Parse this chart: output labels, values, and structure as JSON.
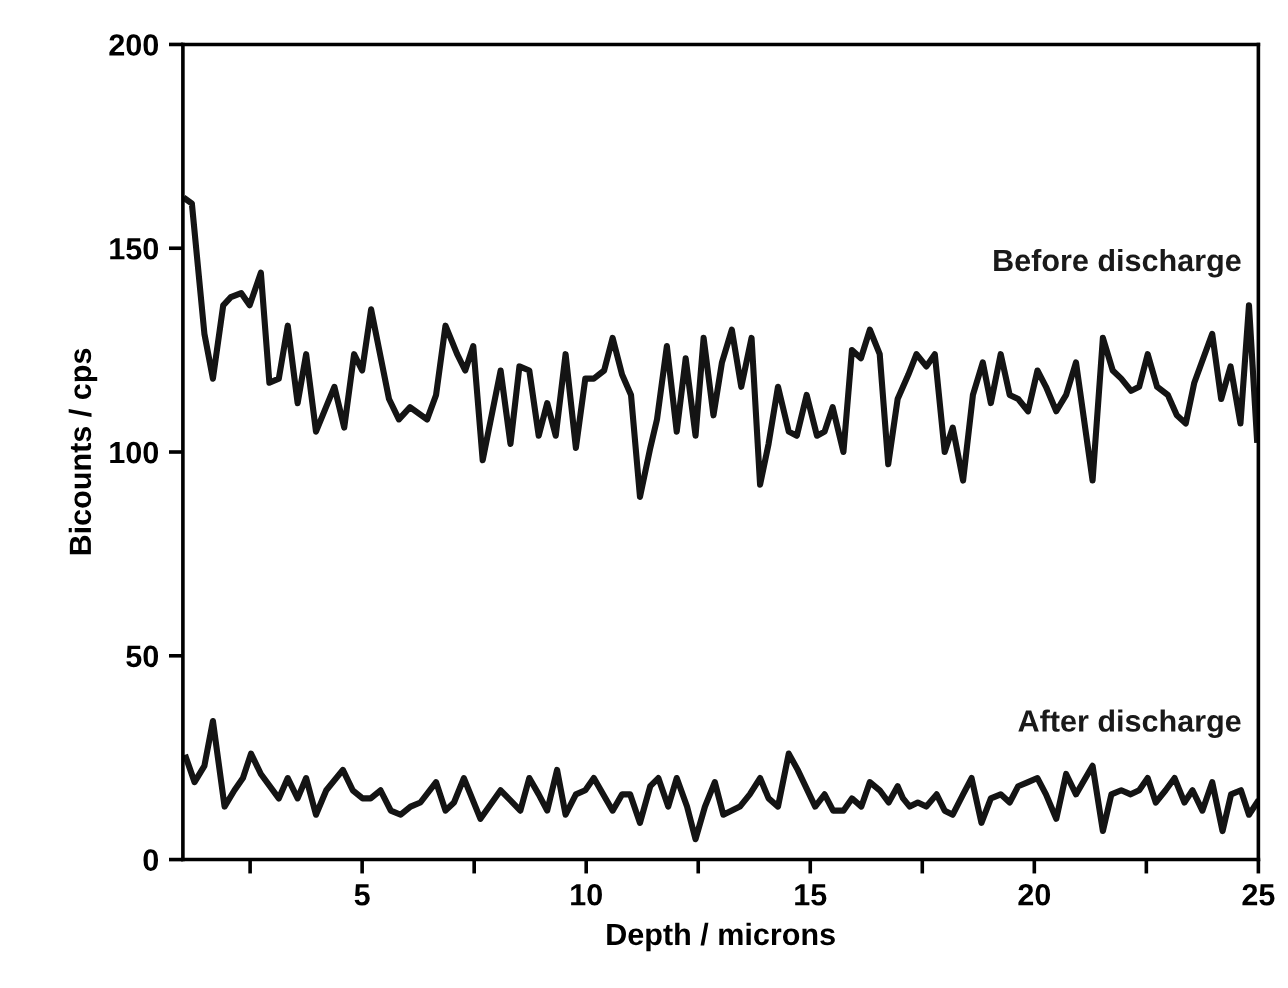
{
  "chart_data": {
    "type": "line",
    "xlabel": "Depth / microns",
    "ylabel": "Bicounts / cps",
    "xlim": [
      1,
      25
    ],
    "ylim": [
      0,
      200
    ],
    "xticks": [
      {
        "value": 2.5,
        "label": null
      },
      5,
      {
        "value": 7.5,
        "label": null
      },
      10,
      {
        "value": 12.5,
        "label": null
      },
      15,
      {
        "value": 17.5,
        "label": null
      },
      20,
      {
        "value": 22.5,
        "label": null
      },
      25
    ],
    "yticks": [
      0,
      50,
      100,
      150,
      200
    ],
    "grid": false,
    "legend": false,
    "marker": "none",
    "line_style": "solid",
    "series": [
      {
        "name": "Before discharge",
        "color": "#141414",
        "x": [
          1.07,
          1.2,
          1.48,
          1.67,
          1.9,
          2.07,
          2.3,
          2.49,
          2.74,
          2.93,
          3.14,
          3.34,
          3.56,
          3.75,
          3.97,
          4.38,
          4.6,
          4.82,
          5.0,
          5.2,
          5.6,
          5.82,
          6.07,
          6.45,
          6.65,
          6.86,
          7.12,
          7.3,
          7.48,
          7.69,
          8.09,
          8.31,
          8.51,
          8.73,
          8.94,
          9.13,
          9.32,
          9.54,
          9.77,
          9.98,
          10.17,
          10.4,
          10.59,
          10.8,
          11.0,
          11.2,
          11.43,
          11.58,
          11.8,
          12.02,
          12.22,
          12.44,
          12.62,
          12.84,
          13.03,
          13.25,
          13.46,
          13.69,
          13.88,
          14.07,
          14.28,
          14.52,
          14.7,
          14.92,
          15.15,
          15.32,
          15.5,
          15.74,
          15.93,
          16.13,
          16.33,
          16.55,
          16.74,
          16.95,
          17.19,
          17.37,
          17.59,
          17.78,
          18.0,
          18.18,
          18.41,
          18.63,
          18.85,
          19.03,
          19.25,
          19.45,
          19.64,
          19.86,
          20.07,
          20.26,
          20.49,
          20.71,
          20.93,
          21.3,
          21.53,
          21.75,
          21.94,
          22.16,
          22.34,
          22.53,
          22.74,
          22.98,
          23.18,
          23.38,
          23.57,
          23.97,
          24.17,
          24.38,
          24.6,
          24.79,
          24.97
        ],
        "values": [
          162,
          161,
          129,
          118,
          136,
          138,
          139,
          136,
          144,
          117,
          118,
          131,
          112,
          124,
          105,
          116,
          106,
          124,
          120,
          135,
          113,
          108,
          111,
          108,
          114,
          131,
          124,
          120,
          126,
          98,
          120,
          102,
          121,
          120,
          104,
          112,
          104,
          124,
          101,
          118,
          118,
          120,
          128,
          119,
          114,
          89,
          101,
          108,
          126,
          105,
          123,
          104,
          128,
          109,
          122,
          130,
          116,
          128,
          92,
          102,
          116,
          105,
          104,
          114,
          104,
          105,
          111,
          100,
          125,
          123,
          130,
          124,
          97,
          113,
          119,
          124,
          121,
          124,
          100,
          106,
          93,
          114,
          122,
          112,
          124,
          114,
          113,
          110,
          120,
          116,
          110,
          114,
          122,
          93,
          128,
          120,
          118,
          115,
          116,
          124,
          116,
          114,
          109,
          107,
          117,
          129,
          113,
          121,
          107,
          136,
          103
        ]
      },
      {
        "name": "After discharge",
        "color": "#141414",
        "x": [
          1.07,
          1.26,
          1.48,
          1.67,
          1.93,
          2.15,
          2.34,
          2.52,
          2.74,
          3.14,
          3.34,
          3.56,
          3.75,
          3.97,
          4.2,
          4.57,
          4.79,
          5.01,
          5.19,
          5.41,
          5.64,
          5.86,
          6.08,
          6.3,
          6.65,
          6.86,
          7.05,
          7.27,
          7.64,
          8.09,
          8.53,
          8.73,
          8.94,
          9.13,
          9.35,
          9.54,
          9.77,
          9.98,
          10.17,
          10.59,
          10.8,
          10.98,
          11.2,
          11.43,
          11.61,
          11.83,
          12.02,
          12.25,
          12.44,
          12.65,
          12.87,
          13.06,
          13.43,
          13.65,
          13.88,
          14.07,
          14.28,
          14.52,
          14.72,
          15.11,
          15.32,
          15.51,
          15.74,
          15.93,
          16.14,
          16.33,
          16.55,
          16.75,
          16.95,
          17.07,
          17.22,
          17.4,
          17.59,
          17.82,
          18.0,
          18.18,
          18.41,
          18.6,
          18.82,
          19.03,
          19.25,
          19.45,
          19.64,
          19.86,
          20.07,
          20.26,
          20.49,
          20.71,
          20.93,
          21.3,
          21.53,
          21.72,
          21.94,
          22.15,
          22.34,
          22.53,
          22.71,
          22.93,
          23.13,
          23.35,
          23.53,
          23.75,
          23.97,
          24.2,
          24.39,
          24.61,
          24.79,
          24.97
        ],
        "values": [
          25,
          19,
          23,
          34,
          13,
          17,
          20,
          26,
          21,
          15,
          20,
          15,
          20,
          11,
          17,
          22,
          17,
          15,
          15,
          17,
          12,
          11,
          13,
          14,
          19,
          12,
          14,
          20,
          10,
          17,
          12,
          20,
          16,
          12,
          22,
          11,
          16,
          17,
          20,
          12,
          16,
          16,
          9,
          18,
          20,
          13,
          20,
          13,
          5,
          13,
          19,
          11,
          13,
          16,
          20,
          15,
          13,
          26,
          22,
          13,
          16,
          12,
          12,
          15,
          13,
          19,
          17,
          14,
          18,
          15,
          13,
          14,
          13,
          16,
          12,
          11,
          16,
          20,
          9,
          15,
          16,
          14,
          18,
          19,
          20,
          16,
          10,
          21,
          16,
          23,
          7,
          16,
          17,
          16,
          17,
          20,
          14,
          17,
          20,
          14,
          17,
          12,
          19,
          7,
          16,
          17,
          11,
          14
        ]
      }
    ]
  }
}
